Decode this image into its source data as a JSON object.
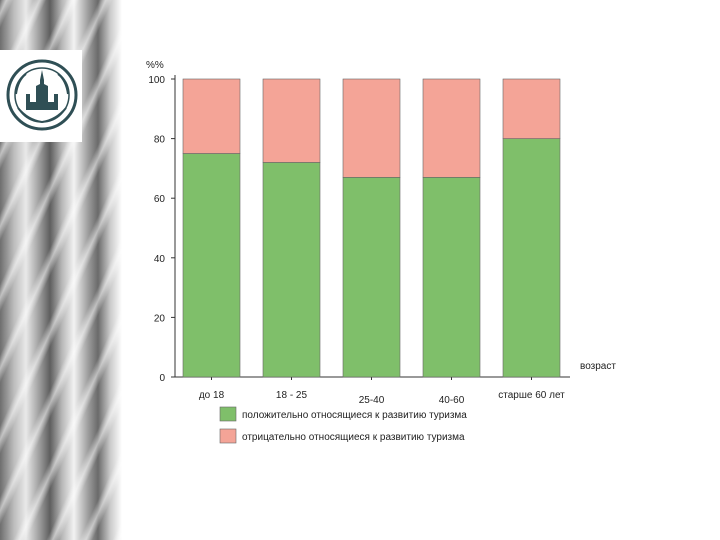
{
  "chart_data": {
    "type": "bar",
    "stacked": true,
    "ylabel": "%%",
    "xlabel": "возраст",
    "ylim": [
      0,
      100
    ],
    "yticks": [
      0,
      20,
      40,
      60,
      80,
      100
    ],
    "categories": [
      "до 18",
      "18 - 25",
      "25-40",
      "40-60",
      "старше 60 лет"
    ],
    "series": [
      {
        "name": "положительно относящиеся к развитию туризма",
        "color": "#7fbf6a",
        "values": [
          75,
          72,
          67,
          67,
          80
        ]
      },
      {
        "name": "отрицательно относящиеся к развитию туризма",
        "color": "#f4a497",
        "values": [
          25,
          28,
          33,
          33,
          20
        ]
      }
    ]
  },
  "colors": {
    "positive": "#7fbf6a",
    "negative": "#f4a497",
    "sidebar": "#9a9a9a"
  },
  "logo": {
    "icon": "university-emblem-icon"
  }
}
